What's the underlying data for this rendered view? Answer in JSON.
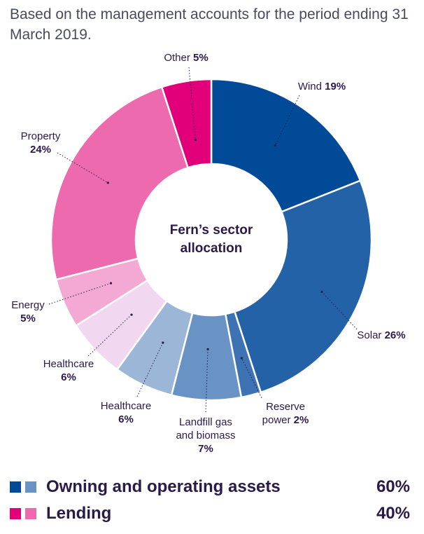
{
  "subtitle": "Based on the management accounts for the period ending 31 March 2019.",
  "chart_data": {
    "type": "pie",
    "title_lines": [
      "Fern’s sector",
      "allocation"
    ],
    "slices": [
      {
        "label_lines": [
          "Wind"
        ],
        "pct_label": "19%",
        "value": 19,
        "color": "#004a98"
      },
      {
        "label_lines": [
          "Solar"
        ],
        "pct_label": "26%",
        "value": 26,
        "color": "#2462a8"
      },
      {
        "label_lines": [
          "Reserve",
          "power"
        ],
        "pct_label": "2%",
        "value": 2,
        "color": "#3d73b2"
      },
      {
        "label_lines": [
          "Landfill gas",
          "and biomass"
        ],
        "pct_label": "7%",
        "value": 7,
        "color": "#6a93c5"
      },
      {
        "label_lines": [
          "Healthcare"
        ],
        "pct_label": "6%",
        "value": 6,
        "color": "#9cb6d7"
      },
      {
        "label_lines": [
          "Healthcare"
        ],
        "pct_label": "6%",
        "value": 6,
        "color": "#f1d7f0"
      },
      {
        "label_lines": [
          "Energy"
        ],
        "pct_label": "5%",
        "value": 5,
        "color": "#f3a9d3"
      },
      {
        "label_lines": [
          "Property"
        ],
        "pct_label": "24%",
        "value": 24,
        "color": "#ee6aaf"
      },
      {
        "label_lines": [
          "Other"
        ],
        "pct_label": "5%",
        "value": 5,
        "color": "#e2007a"
      }
    ]
  },
  "legend": [
    {
      "label": "Owning and operating assets",
      "value": "60%",
      "colors": [
        "#004a98",
        "#6a93c5"
      ]
    },
    {
      "label": "Lending",
      "value": "40%",
      "colors": [
        "#e2007a",
        "#ee6aaf"
      ]
    }
  ]
}
